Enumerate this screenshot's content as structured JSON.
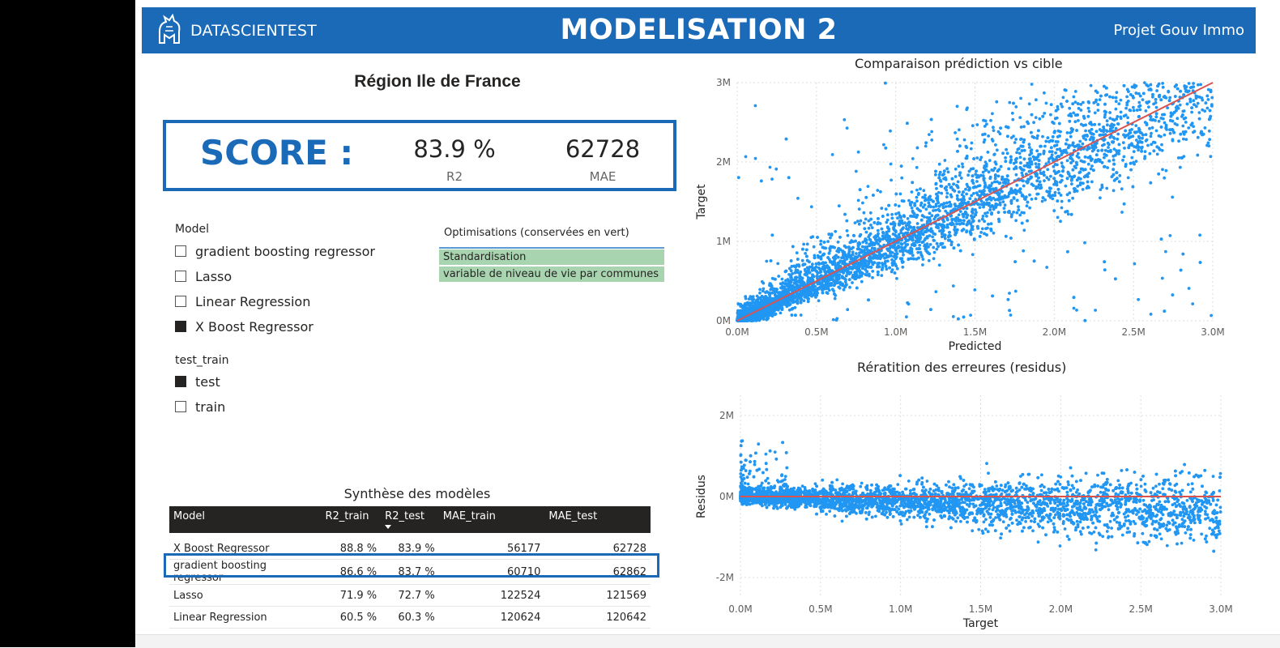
{
  "header": {
    "brand": "DATASCIENTEST",
    "title": "MODELISATION 2",
    "project": "Projet Gouv Immo",
    "color": "#1a6ab8"
  },
  "region_title": "Région Ile de France",
  "score": {
    "label": "SCORE :",
    "r2_value": "83.9 %",
    "r2_label": "R2",
    "mae_value": "62728",
    "mae_label": "MAE"
  },
  "model_slicer": {
    "title": "Model",
    "items": [
      {
        "label": "gradient boosting regressor",
        "checked": false
      },
      {
        "label": "Lasso",
        "checked": false
      },
      {
        "label": "Linear Regression",
        "checked": false
      },
      {
        "label": "X Boost Regressor",
        "checked": true
      }
    ]
  },
  "test_train_slicer": {
    "title": "test_train",
    "items": [
      {
        "label": "test",
        "checked": true
      },
      {
        "label": "train",
        "checked": false
      }
    ]
  },
  "optimisations": {
    "title": "Optimisations (conservées en vert)",
    "rows": [
      "Standardisation",
      "variable de niveau de vie par communes"
    ]
  },
  "table": {
    "title": "Synthèse des modèles",
    "columns": [
      "Model",
      "R2_train",
      "R2_test",
      "MAE_train",
      "MAE_test"
    ],
    "rows": [
      [
        "X Boost Regressor",
        "88.8 %",
        "83.9 %",
        "56177",
        "62728"
      ],
      [
        "gradient boosting regressor",
        "86.6 %",
        "83.7 %",
        "60710",
        "62862"
      ],
      [
        "Lasso",
        "71.9 %",
        "72.7 %",
        "122524",
        "121569"
      ],
      [
        "Linear Regression",
        "60.5 %",
        "60.3 %",
        "120624",
        "120642"
      ]
    ]
  },
  "chart_data": [
    {
      "type": "scatter",
      "title": "Comparaison prédiction vs cible",
      "xlabel": "Predicted",
      "ylabel": "Target",
      "xlim": [
        0,
        3000000
      ],
      "ylim": [
        0,
        3000000
      ],
      "xticks": [
        "0.0M",
        "0.5M",
        "1.0M",
        "1.5M",
        "2.0M",
        "2.5M",
        "3.0M"
      ],
      "yticks": [
        "0M",
        "1M",
        "2M",
        "3M"
      ],
      "grid": true,
      "point_color": "#2196f3",
      "line_color": "#d9534f",
      "reference_line": {
        "x": [
          0,
          3000000
        ],
        "y": [
          0,
          3000000
        ]
      }
    },
    {
      "type": "scatter",
      "title": "Rératition des erreures (residus)",
      "xlabel": "Target",
      "ylabel": "Residus",
      "xlim": [
        0,
        3000000
      ],
      "ylim": [
        -2500000,
        2500000
      ],
      "xticks": [
        "0.0M",
        "0.5M",
        "1.0M",
        "1.5M",
        "2.0M",
        "2.5M",
        "3.0M"
      ],
      "yticks": [
        "2M",
        "0M",
        "-2M"
      ],
      "grid": true,
      "point_color": "#2196f3",
      "line_color": "#d9534f",
      "reference_line": {
        "x": [
          0,
          3000000
        ],
        "y": [
          0,
          0
        ]
      }
    }
  ]
}
